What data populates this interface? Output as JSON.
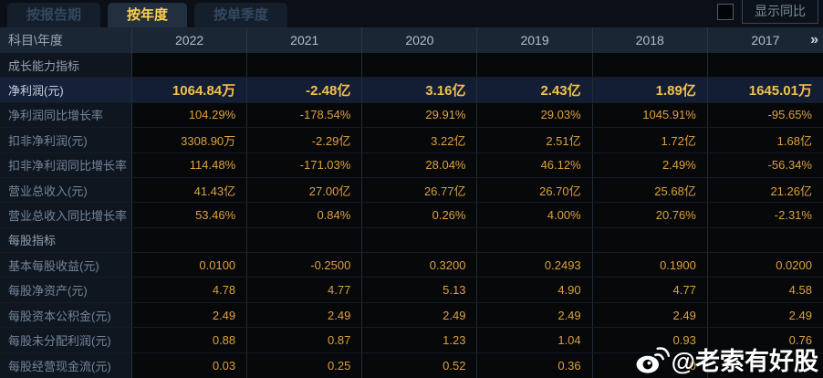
{
  "tabs": [
    {
      "label": "按报告期",
      "active": false
    },
    {
      "label": "按年度",
      "active": true
    },
    {
      "label": "按单季度",
      "active": false
    }
  ],
  "controls": {
    "show_yoy_label": "显示同比",
    "checkbox_checked": false
  },
  "table": {
    "corner_label": "科目\\年度",
    "years": [
      "2022",
      "2021",
      "2020",
      "2019",
      "2018",
      "2017"
    ],
    "more_icon": "»",
    "rows": [
      {
        "type": "section",
        "label": "成长能力指标",
        "values": [
          "",
          "",
          "",
          "",
          "",
          ""
        ]
      },
      {
        "type": "highlight",
        "label": "净利润(元)",
        "values": [
          "1064.84万",
          "-2.48亿",
          "3.16亿",
          "2.43亿",
          "1.89亿",
          "1645.01万"
        ]
      },
      {
        "type": "data",
        "label": "净利润同比增长率",
        "values": [
          "104.29%",
          "-178.54%",
          "29.91%",
          "29.03%",
          "1045.91%",
          "-95.65%"
        ]
      },
      {
        "type": "data",
        "label": "扣非净利润(元)",
        "values": [
          "3308.90万",
          "-2.29亿",
          "3.22亿",
          "2.51亿",
          "1.72亿",
          "1.68亿"
        ]
      },
      {
        "type": "data",
        "label": "扣非净利润同比增长率",
        "values": [
          "114.48%",
          "-171.03%",
          "28.04%",
          "46.12%",
          "2.49%",
          "-56.34%"
        ]
      },
      {
        "type": "data",
        "label": "营业总收入(元)",
        "values": [
          "41.43亿",
          "27.00亿",
          "26.77亿",
          "26.70亿",
          "25.68亿",
          "21.26亿"
        ]
      },
      {
        "type": "data",
        "label": "营业总收入同比增长率",
        "values": [
          "53.46%",
          "0.84%",
          "0.26%",
          "4.00%",
          "20.76%",
          "-2.31%"
        ]
      },
      {
        "type": "section",
        "label": "每股指标",
        "values": [
          "",
          "",
          "",
          "",
          "",
          ""
        ]
      },
      {
        "type": "data",
        "label": "基本每股收益(元)",
        "values": [
          "0.0100",
          "-0.2500",
          "0.3200",
          "0.2493",
          "0.1900",
          "0.0200"
        ]
      },
      {
        "type": "data",
        "label": "每股净资产(元)",
        "values": [
          "4.78",
          "4.77",
          "5.13",
          "4.90",
          "4.77",
          "4.58"
        ]
      },
      {
        "type": "data",
        "label": "每股资本公积金(元)",
        "values": [
          "2.49",
          "2.49",
          "2.49",
          "2.49",
          "2.49",
          "2.49"
        ]
      },
      {
        "type": "data",
        "label": "每股未分配利润(元)",
        "values": [
          "0.88",
          "0.87",
          "1.23",
          "1.04",
          "0.93",
          "0.76"
        ]
      },
      {
        "type": "data",
        "label": "每股经营现金流(元)",
        "values": [
          "0.03",
          "0.25",
          "0.52",
          "0.36",
          "0",
          ""
        ]
      }
    ]
  },
  "watermark": {
    "text": "@老索有好股",
    "icon": "weibo-icon"
  },
  "colors": {
    "background": "#070a0f",
    "header_bg": "#1b2634",
    "label_col_bg": "#0f1620",
    "data_cell_bg": "#060809",
    "highlight_row_bg": "#131e35",
    "value_orange": "#dfa03e",
    "highlight_gold": "#f4c04b",
    "active_tab_yellow": "#ffd24a",
    "label_gray": "#74859a"
  }
}
